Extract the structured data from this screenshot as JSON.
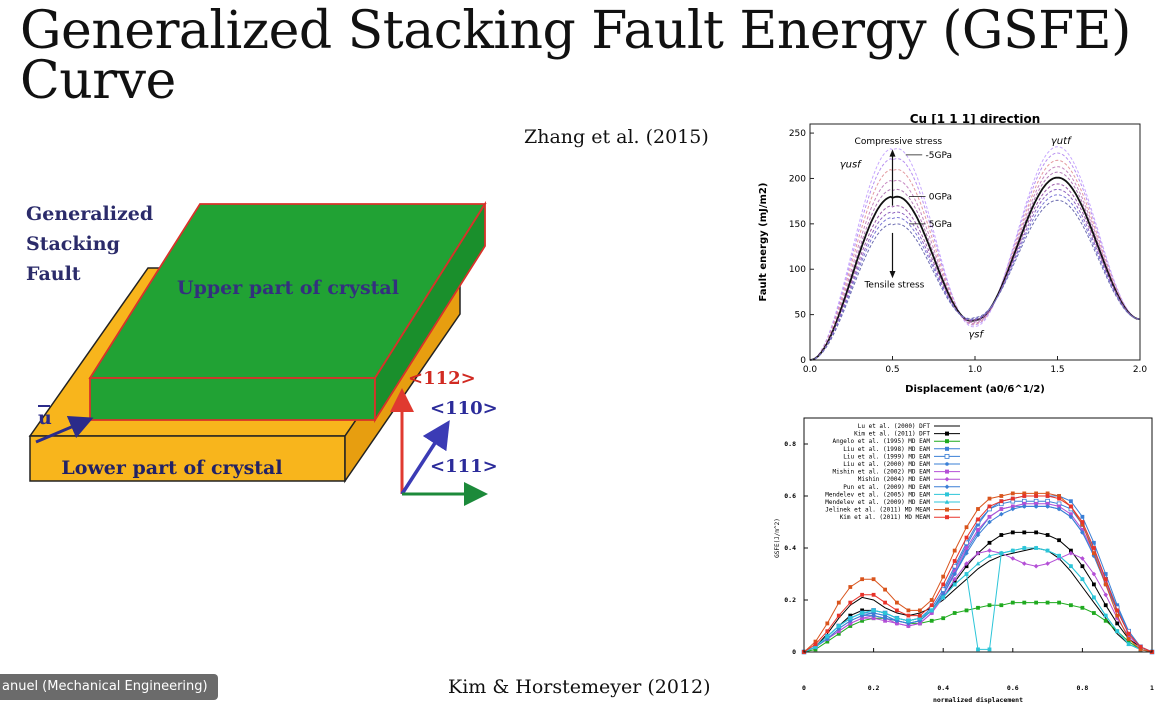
{
  "slide": {
    "title_line1": "Generalized Stacking Fault Energy (GSFE)",
    "title_line2": "Curve",
    "citation_top": "Zhang et al. (2015)",
    "citation_bottom": "Kim & Horstemeyer (2012)",
    "presenter_tag": "anuel (Mechanical Engineering)"
  },
  "diagram": {
    "label_gsf": [
      "Generalized",
      "Stacking",
      "Fault"
    ],
    "upper": "Upper part of crystal",
    "lower": "Lower part of crystal",
    "vec_u": "u",
    "dir_112": "<112>",
    "dir_110": "<110>",
    "dir_111": "<111>",
    "colors": {
      "upper": "#21a234",
      "lower": "#f6b21b",
      "red": "#e23a2e",
      "navy": "#2b2b8a"
    }
  },
  "chart_data": [
    {
      "type": "line",
      "title": "Cu [1 1 1] direction",
      "xlabel": "Displacement (a0/6^1/2)",
      "ylabel": "Fault energy (mJ/m2)",
      "xlim": [
        0,
        2.0
      ],
      "ylim": [
        0,
        260
      ],
      "xticks": [
        "0.0",
        "0.5",
        "1.0",
        "1.5",
        "2.0"
      ],
      "yticks": [
        "0",
        "50",
        "100",
        "150",
        "200",
        "250"
      ],
      "annotations": [
        "Compressive stress",
        "Tensile stress",
        "-5GPa",
        "0GPa",
        "5GPa"
      ],
      "symbol_labels": [
        "γusf",
        "γutf",
        "γsf"
      ],
      "series": [
        {
          "name": "-5GPa",
          "peak1": 233,
          "valley": 37,
          "peak2": 235
        },
        {
          "values_note": "",
          "peak1": 222,
          "valley": 39,
          "peak2": 228
        },
        {
          "peak1": 210,
          "valley": 40,
          "peak2": 220
        },
        {
          "peak1": 198,
          "valley": 41,
          "peak2": 213
        },
        {
          "peak1": 188,
          "valley": 42,
          "peak2": 207
        },
        {
          "name": "0GPa",
          "peak1": 180,
          "valley": 44,
          "peak2": 201
        },
        {
          "peak1": 170,
          "valley": 44,
          "peak2": 194
        },
        {
          "peak1": 163,
          "valley": 45,
          "peak2": 188
        },
        {
          "peak1": 157,
          "valley": 46,
          "peak2": 182
        },
        {
          "name": "5GPa",
          "peak1": 150,
          "valley": 47,
          "peak2": 176
        }
      ]
    },
    {
      "type": "line",
      "xlabel": "normalized displacement",
      "ylabel": "GSFE(J/m^2)",
      "xlim": [
        0,
        1
      ],
      "ylim": [
        0,
        0.9
      ],
      "xticks": [
        "0",
        "0.2",
        "0.4",
        "0.6",
        "0.8",
        "1"
      ],
      "yticks": [
        "0",
        "0.2",
        "0.4",
        "0.6",
        "0.8"
      ],
      "x": [
        0,
        0.033,
        0.067,
        0.1,
        0.133,
        0.167,
        0.2,
        0.233,
        0.267,
        0.3,
        0.333,
        0.367,
        0.4,
        0.433,
        0.467,
        0.5,
        0.533,
        0.567,
        0.6,
        0.633,
        0.667,
        0.7,
        0.733,
        0.767,
        0.8,
        0.833,
        0.867,
        0.9,
        0.933,
        0.967,
        1
      ],
      "series": [
        {
          "name": "Lu et al. (2000) DFT",
          "color": "#000000",
          "marker": "none",
          "values": [
            0,
            0.02,
            0.07,
            0.13,
            0.18,
            0.21,
            0.2,
            0.17,
            0.15,
            0.14,
            0.15,
            0.17,
            0.2,
            0.24,
            0.28,
            0.32,
            0.35,
            0.37,
            0.38,
            0.39,
            0.4,
            0.39,
            0.36,
            0.31,
            0.25,
            0.19,
            0.13,
            0.07,
            0.03,
            0.01,
            0
          ]
        },
        {
          "name": "Kim et al. (2011) DFT",
          "color": "#000000",
          "marker": "square-filled",
          "values": [
            0,
            0.02,
            0.06,
            0.1,
            0.14,
            0.16,
            0.16,
            0.15,
            0.13,
            0.12,
            0.13,
            0.16,
            0.21,
            0.27,
            0.33,
            0.38,
            0.42,
            0.45,
            0.46,
            0.46,
            0.46,
            0.45,
            0.43,
            0.39,
            0.33,
            0.26,
            0.18,
            0.11,
            0.05,
            0.02,
            0
          ]
        },
        {
          "name": "Angelo et al. (1995) MD EAM",
          "color": "#1faa1f",
          "marker": "square-filled",
          "values": [
            0,
            0.01,
            0.04,
            0.07,
            0.1,
            0.12,
            0.13,
            0.13,
            0.12,
            0.11,
            0.11,
            0.12,
            0.13,
            0.15,
            0.16,
            0.17,
            0.18,
            0.18,
            0.19,
            0.19,
            0.19,
            0.19,
            0.19,
            0.18,
            0.17,
            0.15,
            0.12,
            0.08,
            0.04,
            0.01,
            0
          ]
        },
        {
          "name": "Liu et al. (1998) MD EAM",
          "color": "#3a7fd6",
          "marker": "square-filled",
          "values": [
            0,
            0.02,
            0.06,
            0.1,
            0.13,
            0.15,
            0.15,
            0.14,
            0.12,
            0.11,
            0.12,
            0.16,
            0.23,
            0.32,
            0.41,
            0.49,
            0.55,
            0.58,
            0.59,
            0.6,
            0.6,
            0.6,
            0.6,
            0.58,
            0.52,
            0.42,
            0.3,
            0.18,
            0.08,
            0.02,
            0
          ]
        },
        {
          "name": "Liu et al. (1999) MD EAM",
          "color": "#3a7fd6",
          "marker": "square-open",
          "values": [
            0,
            0.02,
            0.06,
            0.1,
            0.13,
            0.15,
            0.16,
            0.15,
            0.13,
            0.12,
            0.13,
            0.17,
            0.24,
            0.33,
            0.42,
            0.5,
            0.55,
            0.57,
            0.58,
            0.58,
            0.58,
            0.58,
            0.57,
            0.55,
            0.49,
            0.39,
            0.28,
            0.17,
            0.08,
            0.02,
            0
          ]
        },
        {
          "name": "Liu et al. (2000) MD EAM",
          "color": "#3a7fd6",
          "marker": "circle",
          "values": [
            0,
            0.02,
            0.05,
            0.09,
            0.12,
            0.14,
            0.15,
            0.14,
            0.12,
            0.11,
            0.12,
            0.16,
            0.22,
            0.3,
            0.39,
            0.46,
            0.52,
            0.55,
            0.56,
            0.56,
            0.56,
            0.56,
            0.55,
            0.52,
            0.46,
            0.37,
            0.26,
            0.16,
            0.07,
            0.02,
            0
          ]
        },
        {
          "name": "Mishin et al. (2002) MD EAM",
          "color": "#b44fd6",
          "marker": "square-filled",
          "values": [
            0,
            0.02,
            0.05,
            0.08,
            0.11,
            0.13,
            0.13,
            0.12,
            0.11,
            0.1,
            0.11,
            0.15,
            0.22,
            0.31,
            0.4,
            0.47,
            0.52,
            0.55,
            0.56,
            0.57,
            0.57,
            0.57,
            0.56,
            0.53,
            0.47,
            0.38,
            0.27,
            0.16,
            0.07,
            0.02,
            0
          ]
        },
        {
          "name": "Mishin (2004) MD EAM",
          "color": "#b44fd6",
          "marker": "diamond",
          "values": [
            0,
            0.02,
            0.05,
            0.08,
            0.11,
            0.13,
            0.14,
            0.13,
            0.11,
            0.1,
            0.11,
            0.15,
            0.21,
            0.28,
            0.34,
            0.38,
            0.39,
            0.38,
            0.36,
            0.34,
            0.33,
            0.34,
            0.36,
            0.38,
            0.36,
            0.3,
            0.22,
            0.13,
            0.06,
            0.02,
            0
          ]
        },
        {
          "name": "Pun et al. (2009) MD EAM",
          "color": "#3a7fd6",
          "marker": "diamond",
          "values": [
            0,
            0.02,
            0.05,
            0.09,
            0.12,
            0.14,
            0.14,
            0.13,
            0.12,
            0.11,
            0.12,
            0.16,
            0.22,
            0.3,
            0.38,
            0.45,
            0.5,
            0.53,
            0.55,
            0.56,
            0.56,
            0.56,
            0.55,
            0.52,
            0.46,
            0.37,
            0.26,
            0.16,
            0.07,
            0.02,
            0
          ]
        },
        {
          "name": "Mendelev et al. (2005) MD EAM",
          "color": "#2cc5d8",
          "marker": "square-filled",
          "values": [
            0,
            0.02,
            0.06,
            0.1,
            0.13,
            0.15,
            0.16,
            0.15,
            0.13,
            0.12,
            0.13,
            0.16,
            0.21,
            0.26,
            0.3,
            0.01,
            0.01,
            0.38,
            0.39,
            0.4,
            0.4,
            0.39,
            0.37,
            0.33,
            0.28,
            0.21,
            0.14,
            0.08,
            0.03,
            0.01,
            0
          ]
        },
        {
          "name": "Mendelev et al. (2009) MD EAM",
          "color": "#2cc5d8",
          "marker": "triangle",
          "values": [
            0,
            0.02,
            0.06,
            0.1,
            0.13,
            0.15,
            0.16,
            0.15,
            0.13,
            0.12,
            0.13,
            0.16,
            0.21,
            0.26,
            0.3,
            0.34,
            0.37,
            0.38,
            0.39,
            0.4,
            0.4,
            0.39,
            0.37,
            0.33,
            0.28,
            0.21,
            0.14,
            0.08,
            0.03,
            0.01,
            0
          ]
        },
        {
          "name": "Jelinek et al. (2011) MD MEAM",
          "color": "#d9541c",
          "marker": "square-filled",
          "values": [
            0,
            0.04,
            0.11,
            0.19,
            0.25,
            0.28,
            0.28,
            0.24,
            0.19,
            0.16,
            0.16,
            0.2,
            0.29,
            0.39,
            0.48,
            0.55,
            0.59,
            0.6,
            0.61,
            0.61,
            0.61,
            0.61,
            0.6,
            0.56,
            0.49,
            0.38,
            0.26,
            0.14,
            0.05,
            0.01,
            0
          ]
        },
        {
          "name": "Kim et al. (2011) MD MEAM",
          "color": "#e8332a",
          "marker": "square-filled",
          "values": [
            0,
            0.03,
            0.08,
            0.14,
            0.19,
            0.22,
            0.22,
            0.19,
            0.16,
            0.14,
            0.14,
            0.18,
            0.26,
            0.35,
            0.44,
            0.51,
            0.56,
            0.58,
            0.59,
            0.6,
            0.6,
            0.6,
            0.59,
            0.56,
            0.5,
            0.4,
            0.28,
            0.16,
            0.07,
            0.02,
            0
          ]
        }
      ]
    }
  ]
}
